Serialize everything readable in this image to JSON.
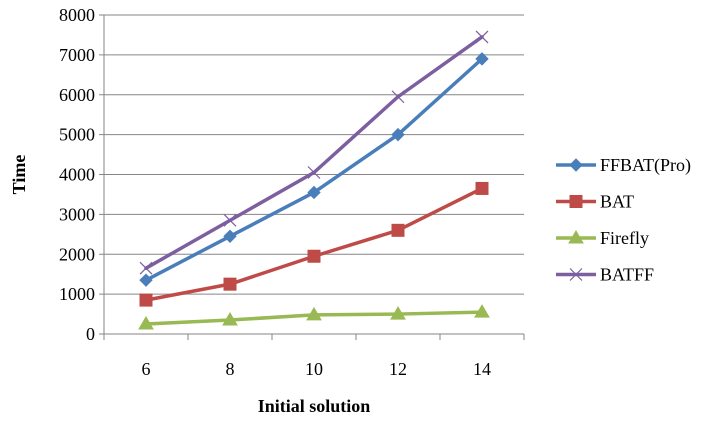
{
  "chart_data": {
    "type": "line",
    "title": "",
    "xlabel": "Initial solution",
    "ylabel": "Time",
    "categories": [
      "6",
      "8",
      "10",
      "12",
      "14"
    ],
    "ylim": [
      0,
      8000
    ],
    "yticks": [
      0,
      1000,
      2000,
      3000,
      4000,
      5000,
      6000,
      7000,
      8000
    ],
    "grid": "horizontal",
    "legend_position": "right",
    "series": [
      {
        "name": "FFBAT(Pro)",
        "values": [
          1350,
          2450,
          3550,
          5000,
          6900
        ],
        "color": "#4a7ebb",
        "marker": "diamond"
      },
      {
        "name": "BAT",
        "values": [
          850,
          1250,
          1950,
          2600,
          3650
        ],
        "color": "#be4b48",
        "marker": "square"
      },
      {
        "name": "Firefly",
        "values": [
          250,
          350,
          480,
          500,
          550
        ],
        "color": "#98b954",
        "marker": "triangle"
      },
      {
        "name": "BATFF",
        "values": [
          1650,
          2850,
          4050,
          5950,
          7450
        ],
        "color": "#7d5fa0",
        "marker": "x"
      }
    ]
  }
}
